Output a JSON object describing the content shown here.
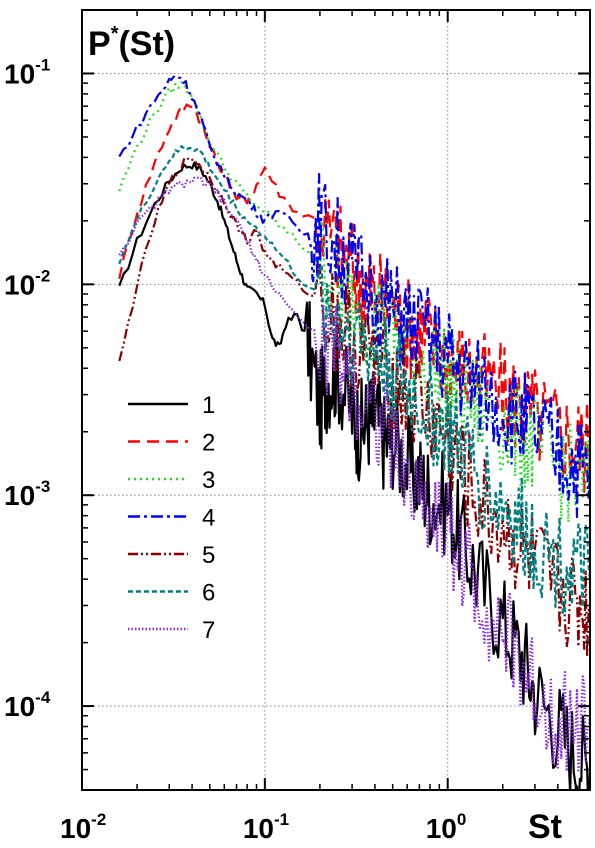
{
  "chart_data": {
    "type": "line",
    "title": "",
    "ylabel_main": "P",
    "ylabel_sup": "*",
    "ylabel_rest": "(St)",
    "xlabel": "St",
    "x_scale": "log",
    "y_scale": "log",
    "xlim": [
      0.01,
      6.0
    ],
    "ylim": [
      4e-05,
      0.2
    ],
    "grid": true,
    "grid_style": "dotted",
    "legend_position": "lower-left",
    "x_ticks": [
      {
        "value": 0.01,
        "base": "10",
        "exp": "-2"
      },
      {
        "value": 0.1,
        "base": "10",
        "exp": "-1"
      },
      {
        "value": 1,
        "base": "10",
        "exp": "0"
      }
    ],
    "y_ticks": [
      {
        "value": 0.1,
        "base": "10",
        "exp": "-1"
      },
      {
        "value": 0.01,
        "base": "10",
        "exp": "-2"
      },
      {
        "value": 0.001,
        "base": "10",
        "exp": "-3"
      },
      {
        "value": 0.0001,
        "base": "10",
        "exp": "-4"
      }
    ],
    "series": [
      {
        "name": "1",
        "color": "#000000",
        "dash": "solid",
        "x": [
          0.016,
          0.02,
          0.025,
          0.03,
          0.035,
          0.04,
          0.045,
          0.05,
          0.055,
          0.06,
          0.065,
          0.07,
          0.075,
          0.08,
          0.09,
          0.1,
          0.11,
          0.12,
          0.13,
          0.15,
          0.17,
          0.2,
          0.22,
          0.25,
          0.3,
          0.33,
          0.37,
          0.4,
          0.45,
          0.5,
          0.6,
          0.7,
          0.8,
          1.0,
          1.2,
          1.5,
          2.0,
          2.5,
          3.0,
          4.0,
          5.0,
          6.0
        ],
        "y": [
          0.0095,
          0.016,
          0.024,
          0.031,
          0.036,
          0.037,
          0.035,
          0.03,
          0.025,
          0.02,
          0.016,
          0.013,
          0.011,
          0.0095,
          0.009,
          0.008,
          0.0055,
          0.005,
          0.0065,
          0.0072,
          0.0055,
          0.0027,
          0.0036,
          0.0039,
          0.0025,
          0.002,
          0.0023,
          0.0024,
          0.0018,
          0.0019,
          0.0014,
          0.0012,
          0.001,
          0.0009,
          0.0006,
          0.0004,
          0.00025,
          0.00018,
          0.00012,
          8e-05,
          6e-05,
          5e-05
        ]
      },
      {
        "name": "2",
        "color": "#ff0000",
        "dash": "dashed",
        "x": [
          0.016,
          0.02,
          0.025,
          0.03,
          0.035,
          0.04,
          0.045,
          0.05,
          0.06,
          0.07,
          0.08,
          0.09,
          0.1,
          0.12,
          0.15,
          0.2,
          0.25,
          0.3,
          0.35,
          0.4,
          0.5,
          0.6,
          0.7,
          0.8,
          1.0,
          1.2,
          1.5,
          2.0,
          2.5,
          3.0,
          4.0,
          5.0,
          6.0
        ],
        "y": [
          0.011,
          0.022,
          0.038,
          0.055,
          0.068,
          0.072,
          0.058,
          0.045,
          0.033,
          0.026,
          0.024,
          0.03,
          0.036,
          0.027,
          0.022,
          0.02,
          0.015,
          0.012,
          0.01,
          0.009,
          0.0075,
          0.0065,
          0.006,
          0.0055,
          0.0045,
          0.004,
          0.0035,
          0.003,
          0.0027,
          0.0024,
          0.002,
          0.0018,
          0.0017
        ]
      },
      {
        "name": "3",
        "color": "#22dd22",
        "dash": "dotted",
        "x": [
          0.016,
          0.02,
          0.025,
          0.03,
          0.035,
          0.04,
          0.045,
          0.05,
          0.06,
          0.07,
          0.08,
          0.1,
          0.12,
          0.15,
          0.2,
          0.25,
          0.3,
          0.4,
          0.5,
          0.6,
          0.8,
          1.0,
          1.2,
          1.5,
          2.0,
          2.5,
          3.0,
          4.0,
          5.0,
          6.0
        ],
        "y": [
          0.028,
          0.045,
          0.065,
          0.082,
          0.09,
          0.08,
          0.06,
          0.048,
          0.036,
          0.03,
          0.026,
          0.022,
          0.019,
          0.016,
          0.013,
          0.01,
          0.0085,
          0.007,
          0.006,
          0.005,
          0.0042,
          0.0035,
          0.003,
          0.0026,
          0.0022,
          0.0019,
          0.0017,
          0.0014,
          0.0012,
          0.0011
        ]
      },
      {
        "name": "4",
        "color": "#0000ee",
        "dash": "dashdot",
        "x": [
          0.016,
          0.02,
          0.025,
          0.03,
          0.033,
          0.036,
          0.04,
          0.045,
          0.05,
          0.06,
          0.07,
          0.08,
          0.09,
          0.1,
          0.12,
          0.15,
          0.18,
          0.2,
          0.25,
          0.3,
          0.4,
          0.5,
          0.6,
          0.8,
          1.0,
          1.2,
          1.5,
          2.0,
          2.5,
          3.0,
          4.0,
          5.0,
          6.0
        ],
        "y": [
          0.04,
          0.055,
          0.075,
          0.092,
          0.098,
          0.093,
          0.078,
          0.06,
          0.045,
          0.033,
          0.027,
          0.025,
          0.022,
          0.02,
          0.023,
          0.018,
          0.017,
          0.02,
          0.015,
          0.012,
          0.009,
          0.0075,
          0.0065,
          0.0055,
          0.0045,
          0.0038,
          0.0032,
          0.0027,
          0.0023,
          0.002,
          0.0016,
          0.0014,
          0.0013
        ]
      },
      {
        "name": "5",
        "color": "#8b0000",
        "dash": "dashdotdot",
        "x": [
          0.016,
          0.02,
          0.025,
          0.03,
          0.035,
          0.04,
          0.045,
          0.05,
          0.06,
          0.07,
          0.08,
          0.09,
          0.1,
          0.12,
          0.15,
          0.2,
          0.25,
          0.3,
          0.4,
          0.5,
          0.6,
          0.8,
          1.0,
          1.2,
          1.5,
          2.0,
          2.5,
          3.0,
          4.0,
          5.0,
          6.0
        ],
        "y": [
          0.0042,
          0.01,
          0.02,
          0.03,
          0.037,
          0.04,
          0.036,
          0.032,
          0.025,
          0.019,
          0.016,
          0.018,
          0.014,
          0.012,
          0.01,
          0.0085,
          0.0065,
          0.0055,
          0.0042,
          0.0035,
          0.003,
          0.0023,
          0.0018,
          0.0013,
          0.0009,
          0.0007,
          0.00055,
          0.00045,
          0.00035,
          0.0003,
          0.00028
        ]
      },
      {
        "name": "6",
        "color": "#008080",
        "dash": "shortdash",
        "x": [
          0.016,
          0.02,
          0.025,
          0.03,
          0.035,
          0.04,
          0.045,
          0.05,
          0.06,
          0.07,
          0.08,
          0.1,
          0.12,
          0.15,
          0.2,
          0.25,
          0.3,
          0.4,
          0.5,
          0.6,
          0.8,
          1.0,
          1.2,
          1.5,
          2.0,
          2.5,
          3.0,
          4.0,
          5.0,
          6.0
        ],
        "y": [
          0.013,
          0.02,
          0.03,
          0.039,
          0.044,
          0.045,
          0.042,
          0.036,
          0.028,
          0.023,
          0.02,
          0.017,
          0.014,
          0.011,
          0.0085,
          0.007,
          0.006,
          0.0047,
          0.0038,
          0.0032,
          0.0024,
          0.002,
          0.0016,
          0.0012,
          0.0009,
          0.0007,
          0.0006,
          0.0005,
          0.00045,
          0.0004
        ]
      },
      {
        "name": "7",
        "color": "#8a2be2",
        "dash": "fine",
        "x": [
          0.016,
          0.02,
          0.025,
          0.03,
          0.035,
          0.04,
          0.045,
          0.05,
          0.055,
          0.06,
          0.07,
          0.08,
          0.09,
          0.1,
          0.12,
          0.15,
          0.2,
          0.25,
          0.3,
          0.4,
          0.5,
          0.6,
          0.8,
          1.0,
          1.2,
          1.5,
          2.0,
          2.5,
          3.0,
          4.0,
          5.0,
          6.0
        ],
        "y": [
          0.014,
          0.019,
          0.024,
          0.028,
          0.03,
          0.031,
          0.031,
          0.029,
          0.027,
          0.024,
          0.02,
          0.016,
          0.013,
          0.011,
          0.009,
          0.007,
          0.0055,
          0.0045,
          0.0035,
          0.0025,
          0.0017,
          0.0012,
          0.0009,
          0.0007,
          0.0005,
          0.00035,
          0.00022,
          0.00016,
          0.00012,
          9e-05,
          8e-05,
          9e-05
        ]
      }
    ]
  }
}
